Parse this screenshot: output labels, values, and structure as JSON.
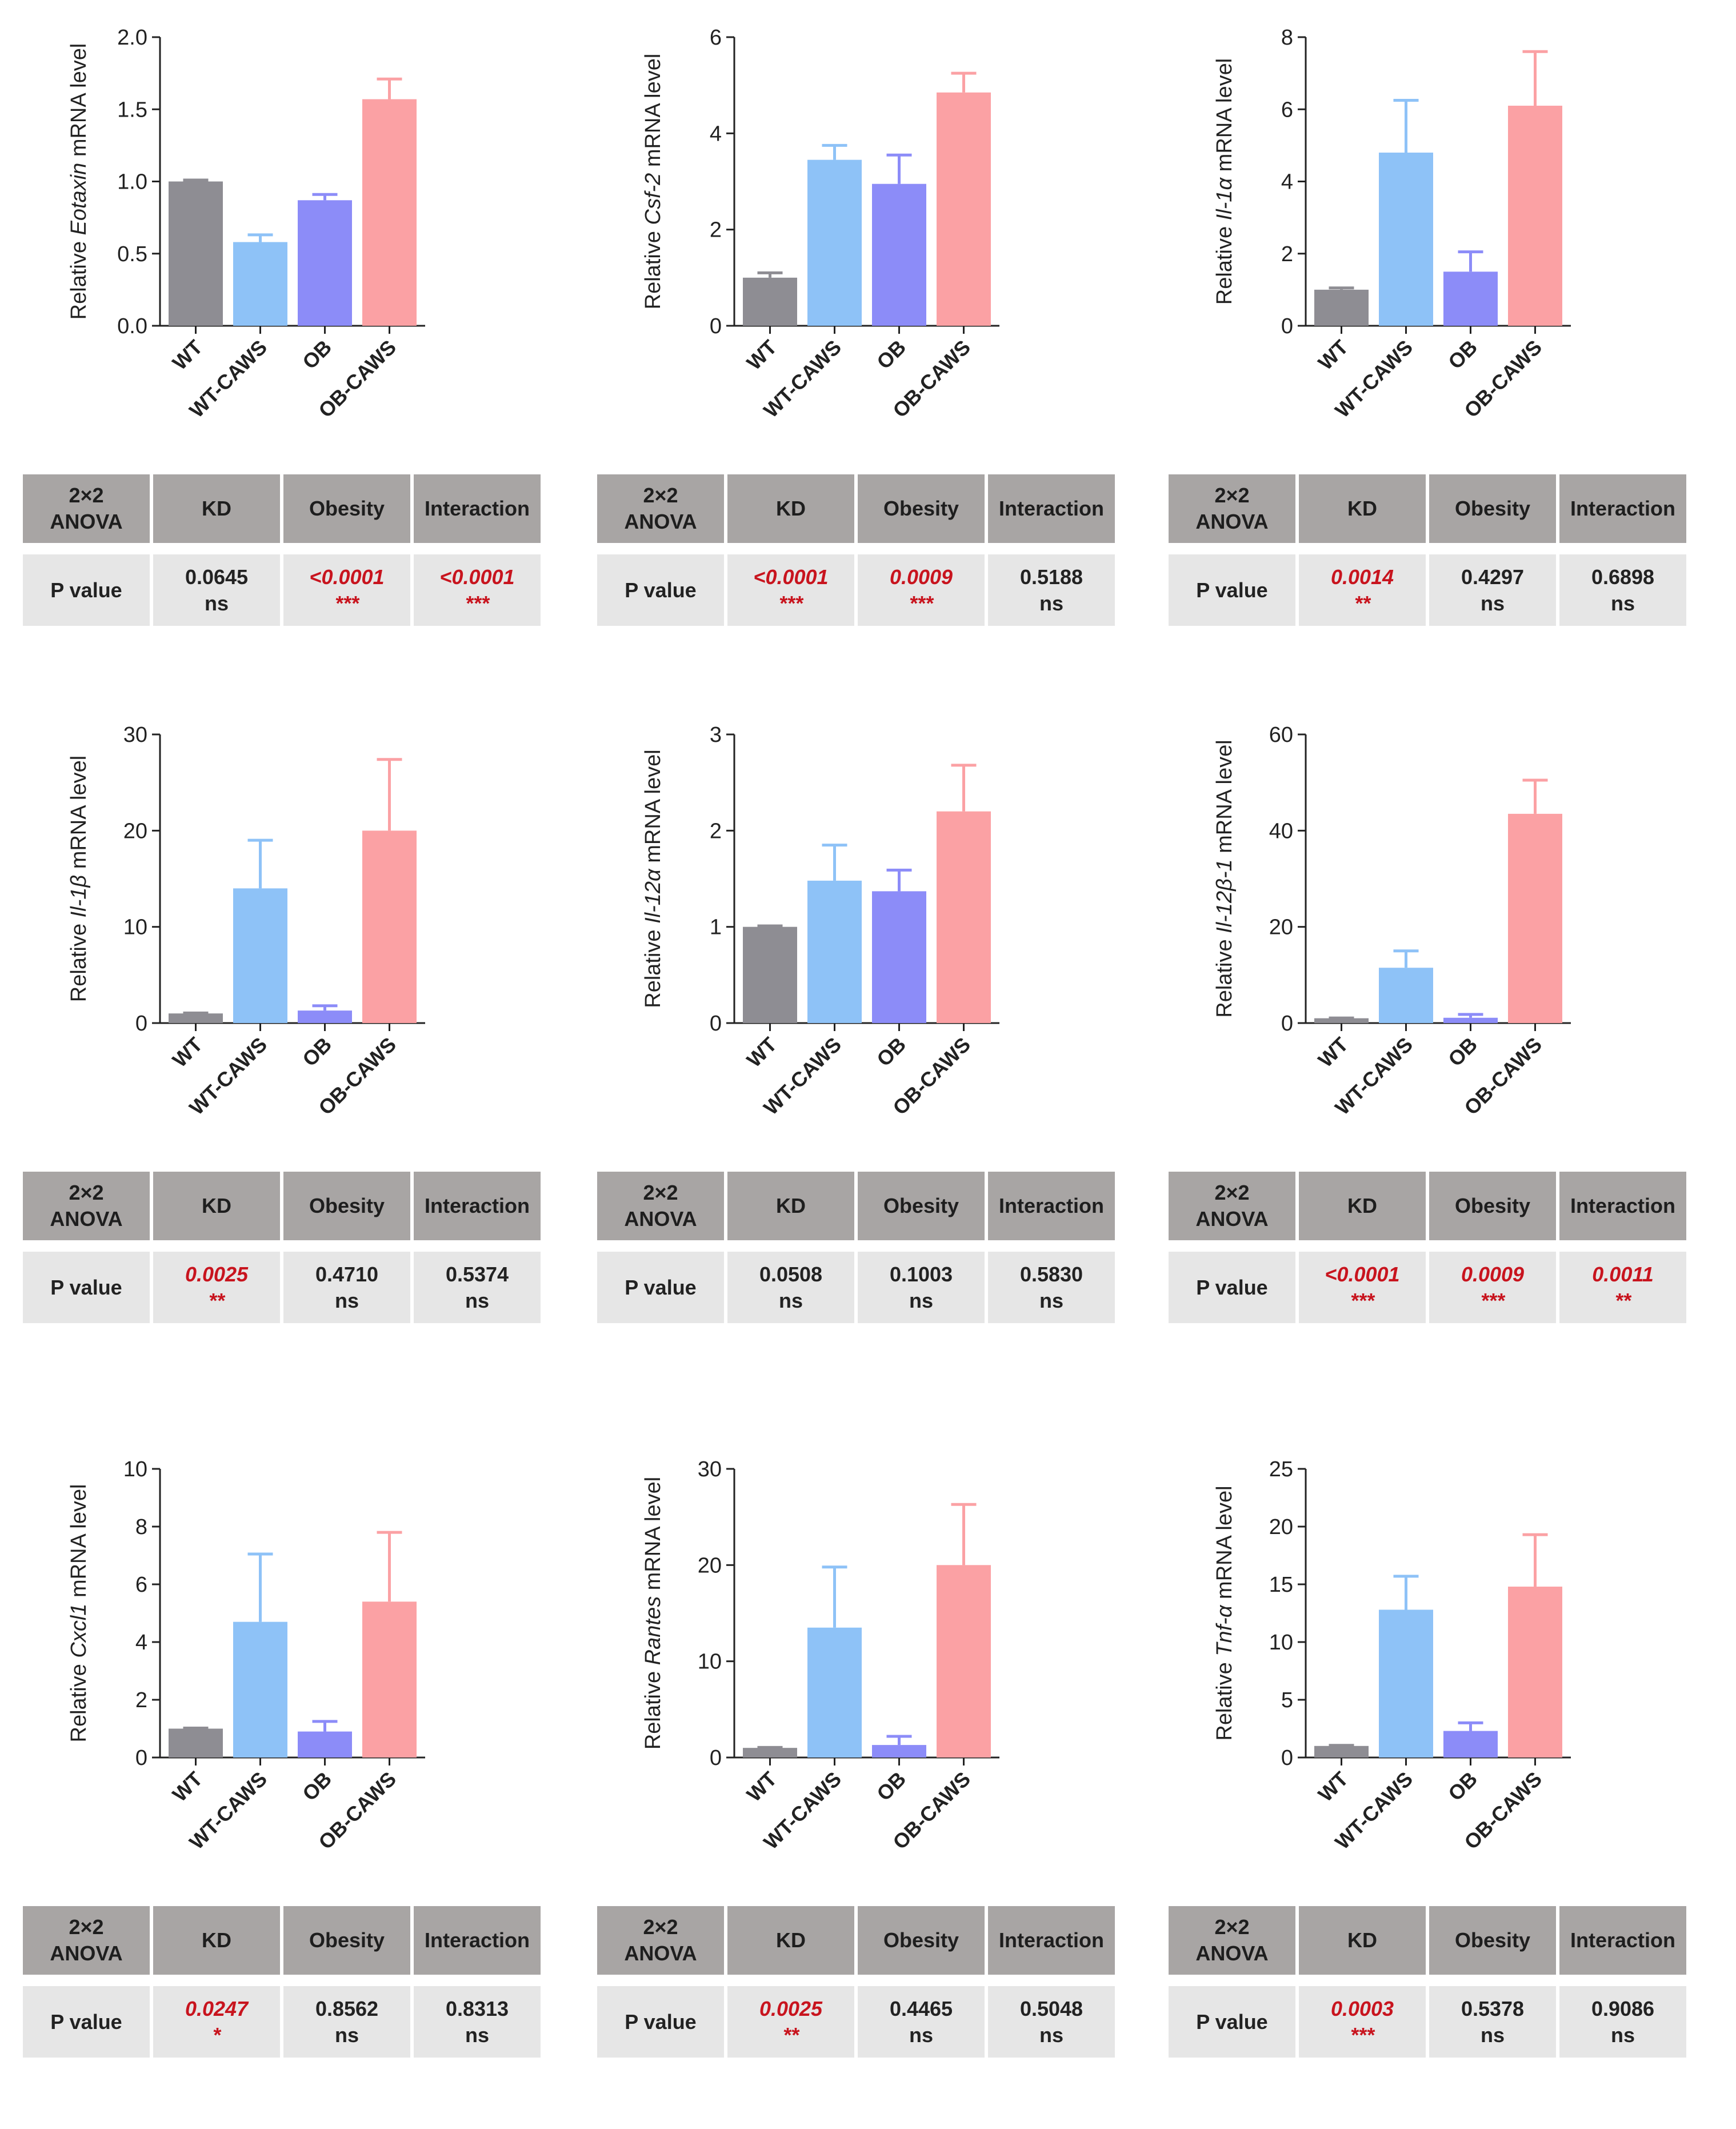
{
  "colors": {
    "WT": "#8e8d93",
    "WT-CAWS": "#8ec2f7",
    "OB": "#8c8cf8",
    "OB-CAWS": "#fba1a4",
    "significant": "#c8141e",
    "header_bg": "#a8a5a4",
    "value_bg": "#e6e6e6"
  },
  "table_headers": [
    "2×2\nANOVA",
    "KD",
    "Obesity",
    "Interaction"
  ],
  "row_label": "P value",
  "chart_data": [
    {
      "type": "bar",
      "gene": "Eotaxin",
      "ylabel_pre": "Relative ",
      "ylabel_post": " mRNA level",
      "categories": [
        "WT",
        "WT-CAWS",
        "OB",
        "OB-CAWS"
      ],
      "values": [
        1.0,
        0.58,
        0.87,
        1.57
      ],
      "errors": [
        0.01,
        0.05,
        0.04,
        0.14
      ],
      "ylim": [
        0,
        2.0
      ],
      "yticks": [
        "0.0",
        "0.5",
        "1.0",
        "1.5",
        "2.0"
      ],
      "anova": [
        {
          "num": "0.0645",
          "sig": "ns",
          "red": false
        },
        {
          "num": "<0.0001",
          "sig": "***",
          "red": true
        },
        {
          "num": "<0.0001",
          "sig": "***",
          "red": true
        }
      ]
    },
    {
      "type": "bar",
      "gene": "Csf-2",
      "ylabel_pre": "Relative ",
      "ylabel_post": " mRNA level",
      "categories": [
        "WT",
        "WT-CAWS",
        "OB",
        "OB-CAWS"
      ],
      "values": [
        1.0,
        3.45,
        2.95,
        4.85
      ],
      "errors": [
        0.1,
        0.3,
        0.6,
        0.4
      ],
      "ylim": [
        0,
        6
      ],
      "yticks": [
        "0",
        "2",
        "4",
        "6"
      ],
      "anova": [
        {
          "num": "<0.0001",
          "sig": "***",
          "red": true
        },
        {
          "num": "0.0009",
          "sig": "***",
          "red": true
        },
        {
          "num": "0.5188",
          "sig": "ns",
          "red": false
        }
      ]
    },
    {
      "type": "bar",
      "gene": "Il-1α",
      "ylabel_pre": "Relative ",
      "ylabel_post": " mRNA level",
      "categories": [
        "WT",
        "WT-CAWS",
        "OB",
        "OB-CAWS"
      ],
      "values": [
        1.0,
        4.8,
        1.5,
        6.1
      ],
      "errors": [
        0.05,
        1.45,
        0.55,
        1.5
      ],
      "ylim": [
        0,
        8
      ],
      "yticks": [
        "0",
        "2",
        "4",
        "6",
        "8"
      ],
      "anova": [
        {
          "num": "0.0014",
          "sig": "**",
          "red": true
        },
        {
          "num": "0.4297",
          "sig": "ns",
          "red": false
        },
        {
          "num": "0.6898",
          "sig": "ns",
          "red": false
        }
      ]
    },
    {
      "type": "bar",
      "gene": "Il-1β",
      "ylabel_pre": "Relative ",
      "ylabel_post": " mRNA level",
      "categories": [
        "WT",
        "WT-CAWS",
        "OB",
        "OB-CAWS"
      ],
      "values": [
        1.0,
        14.0,
        1.3,
        20.0
      ],
      "errors": [
        0.05,
        5.0,
        0.5,
        7.4
      ],
      "ylim": [
        0,
        30
      ],
      "yticks": [
        "0",
        "10",
        "20",
        "30"
      ],
      "anova": [
        {
          "num": "0.0025",
          "sig": "**",
          "red": true
        },
        {
          "num": "0.4710",
          "sig": "ns",
          "red": false
        },
        {
          "num": "0.5374",
          "sig": "ns",
          "red": false
        }
      ]
    },
    {
      "type": "bar",
      "gene": "Il-12α",
      "ylabel_pre": "Relative ",
      "ylabel_post": " mRNA level",
      "categories": [
        "WT",
        "WT-CAWS",
        "OB",
        "OB-CAWS"
      ],
      "values": [
        1.0,
        1.48,
        1.37,
        2.2
      ],
      "errors": [
        0.01,
        0.37,
        0.22,
        0.48
      ],
      "ylim": [
        0,
        3
      ],
      "yticks": [
        "0",
        "1",
        "2",
        "3"
      ],
      "anova": [
        {
          "num": "0.0508",
          "sig": "ns",
          "red": false
        },
        {
          "num": "0.1003",
          "sig": "ns",
          "red": false
        },
        {
          "num": "0.5830",
          "sig": "ns",
          "red": false
        }
      ]
    },
    {
      "type": "bar",
      "gene": "Il-12β-1",
      "ylabel_pre": "Relative ",
      "ylabel_post": " mRNA level",
      "categories": [
        "WT",
        "WT-CAWS",
        "OB",
        "OB-CAWS"
      ],
      "values": [
        1.0,
        11.5,
        1.1,
        43.5
      ],
      "errors": [
        0.05,
        3.5,
        0.7,
        7.0
      ],
      "ylim": [
        0,
        60
      ],
      "yticks": [
        "0",
        "20",
        "40",
        "60"
      ],
      "anova": [
        {
          "num": "<0.0001",
          "sig": "***",
          "red": true
        },
        {
          "num": "0.0009",
          "sig": "***",
          "red": true
        },
        {
          "num": "0.0011",
          "sig": "**",
          "red": true
        }
      ]
    },
    {
      "type": "bar",
      "gene": "Cxcl1",
      "ylabel_pre": "Relative ",
      "ylabel_post": " mRNA level",
      "categories": [
        "WT",
        "WT-CAWS",
        "OB",
        "OB-CAWS"
      ],
      "values": [
        1.0,
        4.7,
        0.9,
        5.4
      ],
      "errors": [
        0.02,
        2.35,
        0.35,
        2.4
      ],
      "ylim": [
        0,
        10
      ],
      "yticks": [
        "0",
        "2",
        "4",
        "6",
        "8",
        "10"
      ],
      "anova": [
        {
          "num": "0.0247",
          "sig": "*",
          "red": true
        },
        {
          "num": "0.8562",
          "sig": "ns",
          "red": false
        },
        {
          "num": "0.8313",
          "sig": "ns",
          "red": false
        }
      ]
    },
    {
      "type": "bar",
      "gene": "Rantes",
      "ylabel_pre": "Relative ",
      "ylabel_post": " mRNA level",
      "categories": [
        "WT",
        "WT-CAWS",
        "OB",
        "OB-CAWS"
      ],
      "values": [
        1.0,
        13.5,
        1.3,
        20.0
      ],
      "errors": [
        0.05,
        6.3,
        0.9,
        6.3
      ],
      "ylim": [
        0,
        30
      ],
      "yticks": [
        "0",
        "10",
        "20",
        "30"
      ],
      "anova": [
        {
          "num": "0.0025",
          "sig": "**",
          "red": true
        },
        {
          "num": "0.4465",
          "sig": "ns",
          "red": false
        },
        {
          "num": "0.5048",
          "sig": "ns",
          "red": false
        }
      ]
    },
    {
      "type": "bar",
      "gene": "Tnf-α",
      "ylabel_pre": "Relative ",
      "ylabel_post": " mRNA level",
      "categories": [
        "WT",
        "WT-CAWS",
        "OB",
        "OB-CAWS"
      ],
      "values": [
        1.0,
        12.8,
        2.3,
        14.8
      ],
      "errors": [
        0.05,
        2.9,
        0.7,
        4.5
      ],
      "ylim": [
        0,
        25
      ],
      "yticks": [
        "0",
        "5",
        "10",
        "15",
        "20",
        "25"
      ],
      "anova": [
        {
          "num": "0.0003",
          "sig": "***",
          "red": true
        },
        {
          "num": "0.5378",
          "sig": "ns",
          "red": false
        },
        {
          "num": "0.9086",
          "sig": "ns",
          "red": false
        }
      ]
    }
  ]
}
